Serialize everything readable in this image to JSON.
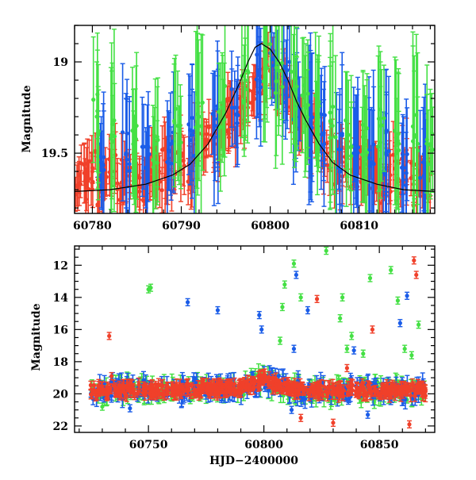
{
  "colors": {
    "green": "#44e044",
    "blue": "#1a5ce8",
    "red": "#f0402a",
    "model": "#000000"
  },
  "chart_data": [
    {
      "type": "scatter",
      "panel": "top",
      "title": "",
      "xlabel": "",
      "ylabel": "Magnitude",
      "xlim": [
        60778,
        60818.5
      ],
      "ylim": [
        19.83,
        18.8
      ],
      "y_inverted": true,
      "x_ticks": [
        60780,
        60790,
        60800,
        60810
      ],
      "x_tick_labels": [
        "60780",
        "60790",
        "60800",
        "60810"
      ],
      "y_ticks": [
        19,
        19.5
      ],
      "y_tick_labels": [
        "19",
        "19.5"
      ],
      "grid": false,
      "legend": "none",
      "series": [
        {
          "color_key": "red",
          "x": [
            60778.5,
            60779.2,
            60780.0,
            60780.8,
            60781.6,
            60782.5,
            60783.3,
            60784.1,
            60785.0,
            60785.9,
            60786.7,
            60787.5,
            60788.4,
            60789.2,
            60790.0,
            60790.9,
            60791.7,
            60792.5,
            60793.4,
            60794.2,
            60795.0,
            60795.8,
            60796.6,
            60797.5,
            60798.3,
            60799.1,
            60800.0,
            60800.8,
            60801.7,
            60802.5,
            60803.4,
            60804.2,
            60805.0,
            60805.9,
            60806.7,
            60807.6,
            60808.4,
            60809.3,
            60810.2,
            60811.0,
            60811.8,
            60812.7,
            60813.5,
            60814.4,
            60815.2,
            60816.1,
            60817.0,
            60817.8
          ],
          "y": [
            19.62,
            19.65,
            19.6,
            19.68,
            19.63,
            19.6,
            19.66,
            19.58,
            19.62,
            19.64,
            19.59,
            19.6,
            19.55,
            19.6,
            19.5,
            19.56,
            19.45,
            19.52,
            19.4,
            19.46,
            19.3,
            19.35,
            19.2,
            19.25,
            19.1,
            19.08,
            19.05,
            19.12,
            19.15,
            19.22,
            19.28,
            19.35,
            19.4,
            19.45,
            19.5,
            19.55,
            19.52,
            19.6,
            19.58,
            19.63,
            19.6,
            19.66,
            19.62,
            19.64,
            19.6,
            19.67,
            19.62,
            19.65
          ],
          "err": [
            0.1,
            0.12,
            0.1,
            0.14,
            0.1,
            0.12,
            0.1,
            0.1,
            0.12,
            0.1,
            0.12,
            0.1,
            0.14,
            0.1,
            0.12,
            0.1,
            0.12,
            0.1,
            0.12,
            0.1,
            0.1,
            0.12,
            0.1,
            0.1,
            0.08,
            0.1,
            0.08,
            0.1,
            0.1,
            0.12,
            0.1,
            0.12,
            0.1,
            0.12,
            0.1,
            0.12,
            0.1,
            0.1,
            0.12,
            0.1,
            0.12,
            0.1,
            0.14,
            0.1,
            0.12,
            0.1,
            0.1,
            0.12
          ]
        },
        {
          "color_key": "blue",
          "x": [
            60781.0,
            60783.8,
            60786.0,
            60788.8,
            60791.2,
            60793.8,
            60796.0,
            60798.6,
            60800.4,
            60801.8,
            60803.0,
            60804.5,
            60806.0,
            60807.8,
            60809.6,
            60811.4,
            60813.0,
            60815.0,
            60817.2
          ],
          "y": [
            19.55,
            19.5,
            19.58,
            19.45,
            19.4,
            19.35,
            19.25,
            19.05,
            19.02,
            19.1,
            19.2,
            19.3,
            19.4,
            19.48,
            19.5,
            19.55,
            19.5,
            19.58,
            19.55
          ],
          "err": [
            0.25,
            0.3,
            0.22,
            0.28,
            0.25,
            0.3,
            0.2,
            0.25,
            0.18,
            0.22,
            0.25,
            0.3,
            0.25,
            0.3,
            0.28,
            0.3,
            0.32,
            0.28,
            0.3
          ]
        },
        {
          "color_key": "green",
          "x": [
            60780.5,
            60782.2,
            60784.6,
            60787.0,
            60789.6,
            60792.0,
            60794.6,
            60797.2,
            60799.6,
            60801.0,
            60802.6,
            60804.0,
            60805.4,
            60807.0,
            60808.8,
            60810.6,
            60812.4,
            60814.2,
            60816.2,
            60818.0
          ],
          "y": [
            19.3,
            19.4,
            19.45,
            19.5,
            19.35,
            19.3,
            19.25,
            19.15,
            19.0,
            19.05,
            19.15,
            19.25,
            19.3,
            19.35,
            19.4,
            19.45,
            19.35,
            19.5,
            19.4,
            19.45
          ],
          "err": [
            0.3,
            0.35,
            0.3,
            0.25,
            0.3,
            0.35,
            0.3,
            0.28,
            0.25,
            0.3,
            0.3,
            0.35,
            0.3,
            0.35,
            0.3,
            0.32,
            0.35,
            0.3,
            0.35,
            0.3
          ]
        }
      ],
      "model_curve": {
        "color_key": "model",
        "x": [
          60778,
          60782,
          60786,
          60789,
          60791,
          60793,
          60795,
          60796.5,
          60797.5,
          60798.3,
          60799,
          60800,
          60801,
          60802,
          60803,
          60804,
          60805.5,
          60807,
          60809,
          60812,
          60815,
          60818.5
        ],
        "y": [
          19.71,
          19.7,
          19.67,
          19.62,
          19.56,
          19.45,
          19.28,
          19.12,
          19.0,
          18.92,
          18.9,
          18.93,
          19.0,
          19.1,
          19.22,
          19.32,
          19.45,
          19.55,
          19.62,
          19.67,
          19.7,
          19.71
        ]
      }
    },
    {
      "type": "scatter",
      "panel": "bottom",
      "title": "",
      "xlabel": "HJD−2400000",
      "ylabel": "Magnitude",
      "xlim": [
        60718,
        60874
      ],
      "ylim": [
        22.4,
        10.8
      ],
      "y_inverted": true,
      "x_ticks": [
        60750,
        60800,
        60850
      ],
      "x_tick_labels": [
        "60750",
        "60800",
        "60850"
      ],
      "y_ticks": [
        12,
        14,
        16,
        18,
        20,
        22
      ],
      "y_tick_labels": [
        "12",
        "14",
        "16",
        "18",
        "20",
        "22"
      ],
      "grid": false,
      "legend": "none",
      "outliers": [
        {
          "color_key": "red",
          "x": 60733,
          "y": 16.4
        },
        {
          "color_key": "red",
          "x": 60734,
          "y": 18.9
        },
        {
          "color_key": "green",
          "x": 60750,
          "y": 13.5
        },
        {
          "color_key": "green",
          "x": 60751,
          "y": 13.4
        },
        {
          "color_key": "blue",
          "x": 60767,
          "y": 14.3
        },
        {
          "color_key": "blue",
          "x": 60780,
          "y": 14.8
        },
        {
          "color_key": "blue",
          "x": 60798,
          "y": 15.1
        },
        {
          "color_key": "blue",
          "x": 60799,
          "y": 16.0
        },
        {
          "color_key": "green",
          "x": 60807,
          "y": 16.7
        },
        {
          "color_key": "green",
          "x": 60808,
          "y": 14.6
        },
        {
          "color_key": "green",
          "x": 60809,
          "y": 13.2
        },
        {
          "color_key": "green",
          "x": 60813,
          "y": 11.9
        },
        {
          "color_key": "blue",
          "x": 60814,
          "y": 12.6
        },
        {
          "color_key": "green",
          "x": 60816,
          "y": 14.0
        },
        {
          "color_key": "blue",
          "x": 60819,
          "y": 14.8
        },
        {
          "color_key": "blue",
          "x": 60813,
          "y": 17.2
        },
        {
          "color_key": "green",
          "x": 60827,
          "y": 11.1
        },
        {
          "color_key": "red",
          "x": 60823,
          "y": 14.1
        },
        {
          "color_key": "green",
          "x": 60833,
          "y": 15.3
        },
        {
          "color_key": "green",
          "x": 60834,
          "y": 14.0
        },
        {
          "color_key": "green",
          "x": 60838,
          "y": 16.4
        },
        {
          "color_key": "green",
          "x": 60836,
          "y": 17.2
        },
        {
          "color_key": "red",
          "x": 60836,
          "y": 18.4
        },
        {
          "color_key": "blue",
          "x": 60839,
          "y": 17.3
        },
        {
          "color_key": "green",
          "x": 60843,
          "y": 17.5
        },
        {
          "color_key": "green",
          "x": 60846,
          "y": 12.8
        },
        {
          "color_key": "red",
          "x": 60847,
          "y": 16.0
        },
        {
          "color_key": "green",
          "x": 60855,
          "y": 12.3
        },
        {
          "color_key": "green",
          "x": 60858,
          "y": 14.2
        },
        {
          "color_key": "blue",
          "x": 60859,
          "y": 15.6
        },
        {
          "color_key": "blue",
          "x": 60862,
          "y": 13.9
        },
        {
          "color_key": "green",
          "x": 60867,
          "y": 15.7
        },
        {
          "color_key": "red",
          "x": 60865,
          "y": 11.7
        },
        {
          "color_key": "red",
          "x": 60866,
          "y": 12.6
        },
        {
          "color_key": "green",
          "x": 60861,
          "y": 17.2
        },
        {
          "color_key": "green",
          "x": 60864,
          "y": 17.6
        },
        {
          "color_key": "blue",
          "x": 60812,
          "y": 21.0
        },
        {
          "color_key": "red",
          "x": 60816,
          "y": 21.5
        },
        {
          "color_key": "red",
          "x": 60830,
          "y": 21.8
        },
        {
          "color_key": "blue",
          "x": 60845,
          "y": 21.3
        },
        {
          "color_key": "red",
          "x": 60863,
          "y": 21.9
        },
        {
          "color_key": "green",
          "x": 60730,
          "y": 20.8
        },
        {
          "color_key": "blue",
          "x": 60742,
          "y": 20.9
        }
      ],
      "baseline": {
        "x": [
          60725,
          60740,
          60760,
          60780,
          60790,
          60795,
          60800,
          60805,
          60810,
          60815,
          60825,
          60840,
          60855,
          60870
        ],
        "y": [
          19.8,
          19.75,
          19.75,
          19.7,
          19.6,
          19.4,
          19.1,
          19.4,
          19.65,
          19.75,
          19.8,
          19.8,
          19.8,
          19.8
        ]
      }
    }
  ]
}
